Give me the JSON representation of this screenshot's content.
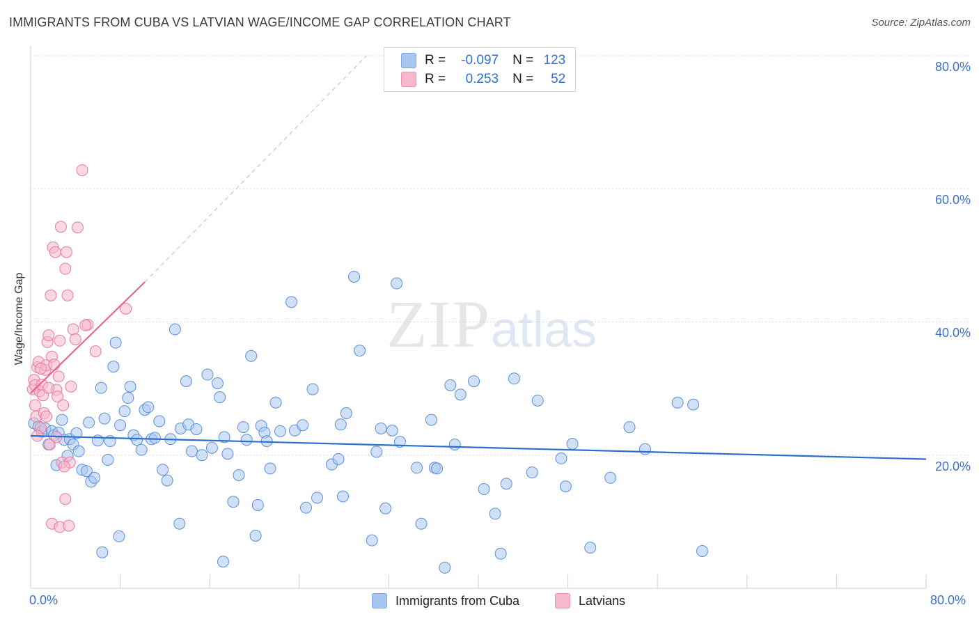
{
  "header": {
    "title": "IMMIGRANTS FROM CUBA VS LATVIAN WAGE/INCOME GAP CORRELATION CHART",
    "source": "Source: ZipAtlas.com"
  },
  "watermark": {
    "zip": "ZIP",
    "atlas": "atlas"
  },
  "legend": {
    "r_label": "R =",
    "n_label": "N =",
    "rows": [
      {
        "name": "Immigrants from Cuba",
        "r": "-0.097",
        "n": "123",
        "color": "#a9c6f0"
      },
      {
        "name": "Latvians",
        "r": "0.253",
        "n": "52",
        "color": "#f6b8cc"
      }
    ]
  },
  "chart_data": {
    "type": "scatter",
    "title": "IMMIGRANTS FROM CUBA VS LATVIAN WAGE/INCOME GAP CORRELATION CHART",
    "xlabel": "",
    "ylabel": "Wage/Income Gap",
    "xlim": [
      0,
      80
    ],
    "ylim": [
      0,
      80
    ],
    "x_tick_labels": [
      "0.0%",
      "80.0%"
    ],
    "y_tick_labels": [
      "20.0%",
      "40.0%",
      "60.0%",
      "80.0%"
    ],
    "y_ticks": [
      20,
      40,
      60,
      80
    ],
    "series": [
      {
        "name": "Immigrants from Cuba",
        "color": "#5b8fd6",
        "fill": "#a9c6f0",
        "trend": {
          "x": [
            0,
            80
          ],
          "y": [
            22.9,
            19.4
          ]
        },
        "points": [
          [
            0.3,
            24.8
          ],
          [
            0.7,
            24.3
          ],
          [
            1.0,
            23.5
          ],
          [
            1.3,
            24.0
          ],
          [
            1.6,
            21.6
          ],
          [
            1.9,
            23.6
          ],
          [
            2.1,
            23.0
          ],
          [
            2.3,
            18.5
          ],
          [
            2.5,
            23.4
          ],
          [
            2.8,
            25.3
          ],
          [
            3.0,
            22.3
          ],
          [
            3.3,
            19.9
          ],
          [
            3.5,
            22.4
          ],
          [
            3.8,
            21.6
          ],
          [
            4.1,
            23.3
          ],
          [
            4.3,
            20.6
          ],
          [
            4.6,
            17.8
          ],
          [
            5.0,
            17.6
          ],
          [
            5.2,
            24.9
          ],
          [
            5.4,
            16.0
          ],
          [
            5.7,
            16.6
          ],
          [
            6.0,
            22.2
          ],
          [
            6.3,
            30.1
          ],
          [
            6.6,
            25.5
          ],
          [
            6.9,
            19.3
          ],
          [
            7.1,
            22.1
          ],
          [
            7.4,
            33.3
          ],
          [
            7.6,
            36.9
          ],
          [
            8.0,
            24.5
          ],
          [
            8.4,
            26.6
          ],
          [
            8.7,
            28.6
          ],
          [
            8.9,
            30.3
          ],
          [
            9.2,
            23.0
          ],
          [
            9.5,
            22.3
          ],
          [
            9.9,
            20.8
          ],
          [
            10.2,
            26.8
          ],
          [
            10.5,
            27.2
          ],
          [
            10.8,
            22.4
          ],
          [
            11.1,
            22.6
          ],
          [
            11.5,
            25.1
          ],
          [
            11.8,
            17.8
          ],
          [
            12.2,
            16.2
          ],
          [
            12.5,
            22.4
          ],
          [
            12.9,
            38.9
          ],
          [
            13.4,
            24.0
          ],
          [
            13.9,
            31.1
          ],
          [
            14.1,
            24.6
          ],
          [
            14.4,
            20.6
          ],
          [
            14.8,
            23.9
          ],
          [
            15.3,
            20.0
          ],
          [
            15.8,
            32.1
          ],
          [
            16.2,
            21.1
          ],
          [
            16.7,
            30.8
          ],
          [
            16.9,
            28.7
          ],
          [
            17.3,
            22.7
          ],
          [
            17.6,
            20.2
          ],
          [
            18.1,
            13.0
          ],
          [
            18.6,
            17.0
          ],
          [
            19.0,
            24.2
          ],
          [
            19.3,
            22.3
          ],
          [
            19.7,
            34.9
          ],
          [
            20.1,
            7.9
          ],
          [
            20.3,
            12.5
          ],
          [
            20.6,
            24.4
          ],
          [
            20.9,
            23.4
          ],
          [
            21.1,
            22.1
          ],
          [
            21.4,
            18.0
          ],
          [
            21.9,
            27.9
          ],
          [
            22.3,
            23.6
          ],
          [
            23.3,
            43.0
          ],
          [
            23.6,
            23.7
          ],
          [
            24.3,
            24.5
          ],
          [
            24.6,
            12.1
          ],
          [
            25.2,
            29.9
          ],
          [
            25.6,
            13.6
          ],
          [
            26.9,
            18.6
          ],
          [
            27.5,
            19.4
          ],
          [
            27.7,
            24.6
          ],
          [
            27.9,
            13.8
          ],
          [
            28.2,
            26.3
          ],
          [
            28.9,
            46.8
          ],
          [
            29.4,
            35.7
          ],
          [
            30.5,
            7.2
          ],
          [
            30.9,
            20.5
          ],
          [
            31.3,
            24.0
          ],
          [
            31.7,
            12.0
          ],
          [
            32.3,
            23.7
          ],
          [
            32.7,
            45.8
          ],
          [
            33.0,
            22.0
          ],
          [
            34.5,
            18.1
          ],
          [
            34.9,
            9.7
          ],
          [
            35.8,
            25.3
          ],
          [
            36.1,
            18.1
          ],
          [
            36.3,
            18.0
          ],
          [
            37.0,
            3.1
          ],
          [
            37.5,
            30.5
          ],
          [
            37.9,
            21.6
          ],
          [
            38.4,
            29.1
          ],
          [
            39.6,
            31.1
          ],
          [
            40.5,
            14.9
          ],
          [
            41.5,
            11.2
          ],
          [
            42.0,
            5.2
          ],
          [
            42.5,
            15.7
          ],
          [
            43.2,
            31.5
          ],
          [
            44.8,
            17.4
          ],
          [
            45.3,
            28.2
          ],
          [
            47.4,
            19.5
          ],
          [
            47.8,
            15.3
          ],
          [
            48.4,
            21.7
          ],
          [
            50.0,
            6.1
          ],
          [
            51.8,
            16.6
          ],
          [
            53.5,
            24.2
          ],
          [
            54.9,
            20.9
          ],
          [
            57.8,
            27.9
          ],
          [
            59.2,
            27.6
          ],
          [
            60.0,
            5.6
          ],
          [
            6.4,
            5.4
          ],
          [
            7.9,
            7.8
          ],
          [
            13.3,
            9.7
          ],
          [
            17.2,
            4.0
          ]
        ]
      },
      {
        "name": "Latvians",
        "color": "#e7799f",
        "fill": "#f6b8cc",
        "trend": {
          "x": [
            0,
            10.2
          ],
          "y": [
            29.3,
            46.0
          ]
        },
        "trend_extension": {
          "x": [
            10.2,
            30.0
          ],
          "y": [
            46.0,
            80.0
          ]
        },
        "points": [
          [
            0.2,
            29.9
          ],
          [
            0.3,
            31.3
          ],
          [
            0.4,
            30.5
          ],
          [
            0.4,
            27.5
          ],
          [
            0.5,
            25.8
          ],
          [
            0.6,
            33.2
          ],
          [
            0.7,
            34.0
          ],
          [
            0.8,
            29.6
          ],
          [
            0.9,
            24.1
          ],
          [
            1.0,
            30.6
          ],
          [
            1.1,
            29.0
          ],
          [
            1.2,
            26.3
          ],
          [
            1.3,
            32.8
          ],
          [
            1.4,
            33.5
          ],
          [
            1.4,
            25.8
          ],
          [
            1.5,
            37.0
          ],
          [
            1.6,
            38.0
          ],
          [
            1.7,
            21.6
          ],
          [
            1.8,
            44.0
          ],
          [
            1.9,
            34.8
          ],
          [
            2.0,
            51.2
          ],
          [
            2.1,
            33.6
          ],
          [
            2.2,
            50.5
          ],
          [
            2.3,
            29.8
          ],
          [
            2.4,
            28.8
          ],
          [
            2.5,
            31.8
          ],
          [
            2.6,
            37.2
          ],
          [
            2.7,
            54.3
          ],
          [
            2.8,
            18.9
          ],
          [
            2.9,
            27.5
          ],
          [
            3.1,
            48.0
          ],
          [
            3.2,
            50.5
          ],
          [
            3.3,
            44.0
          ],
          [
            3.5,
            18.9
          ],
          [
            3.6,
            30.3
          ],
          [
            3.8,
            38.9
          ],
          [
            4.0,
            37.4
          ],
          [
            4.2,
            54.2
          ],
          [
            4.6,
            62.8
          ],
          [
            5.1,
            39.6
          ],
          [
            5.8,
            35.6
          ],
          [
            8.5,
            42.0
          ],
          [
            3.1,
            13.4
          ],
          [
            1.9,
            9.7
          ],
          [
            2.6,
            9.2
          ],
          [
            3.4,
            9.4
          ],
          [
            0.9,
            33.0
          ],
          [
            1.6,
            30.1
          ],
          [
            2.3,
            22.7
          ],
          [
            3.0,
            18.3
          ],
          [
            0.6,
            22.9
          ],
          [
            4.9,
            39.5
          ]
        ]
      }
    ]
  }
}
